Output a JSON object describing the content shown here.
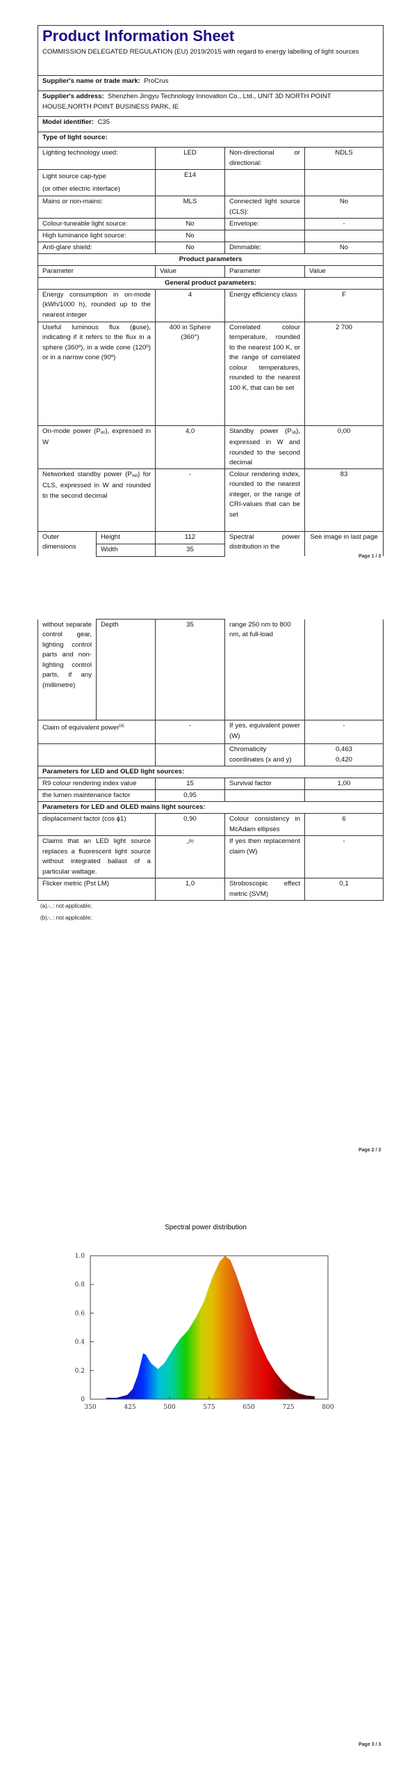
{
  "page1": {
    "title": "Product Information Sheet",
    "regulation": "COMMISSION DELEGATED REGULATION (EU) 2019/2015 with regard to energy labelling of light sources",
    "supplier_name_label": "Supplier's name or trade mark:",
    "supplier_name": "ProCrus",
    "supplier_address_label": "Supplier's address:",
    "supplier_address": "Shenzhen Jingyu Technology Innovation Co., Ltd., UNIT 3D NORTH POINT HOUSE,NORTH POINT BUSINESS PARK, IE",
    "model_label": "Model identifier:",
    "model": "C35",
    "type_heading": "Type of light source:",
    "type_rows": [
      [
        "Lighting technology used:",
        "LED",
        "Non-directional or directional:",
        "NDLS"
      ],
      [
        "Light source cap-type",
        "E14",
        "",
        ""
      ],
      [
        "Mains or non-mains:",
        "MLS",
        "Connected light source (CLS):",
        "No"
      ],
      [
        "Colour-tuneable light source:",
        "No",
        "Envelope:",
        "-"
      ],
      [
        "High luminance light source:",
        "No",
        "",
        ""
      ],
      [
        "Anti-glare shield:",
        "No",
        "Dimmable:",
        "No"
      ]
    ],
    "cap_type_note": "(or other electric interface)",
    "product_parameters": "Product parameters",
    "col_headers": [
      "Parameter",
      "Value",
      "Parameter",
      "Value"
    ],
    "general_heading": "General product parameters:",
    "energy": [
      "Energy consumption in on-mode (kWh/1000 h), rounded up to the nearest integer",
      "4",
      "Energy efficiency class",
      "F"
    ],
    "flux": [
      "Useful luminous flux (ϕuse), indicating if it refers to the flux in a sphere (360º), in a wide cone (120º) or in a narrow cone (90º)",
      "400 in Sphere (360°)",
      "Correlated colour temperature, rounded to the nearest 100 K, or the range of correlated colour temperatures, rounded to the nearest 100 K, that can be set",
      "2 700"
    ],
    "onmode": {
      "pre": "On-mode power (P",
      "sub": "on",
      "post": "), expressed in W",
      "value": "4,0",
      "p2_pre": "Standby power (P",
      "p2_sub": "sb",
      "p2_post": "), expressed in W and rounded to the second decimal",
      "value2": "0,00"
    },
    "networked": {
      "pre": "Networked standby power (P",
      "sub": "net",
      "post": ") for CLS, expressed in W and rounded to the second decimal",
      "value": "-",
      "p2": "Colour rendering index, rounded to the nearest integer, or the range of CRI-values that can be set",
      "value2": "83"
    },
    "outer": {
      "label": "Outer dimensions",
      "height_label": "Height",
      "height": "112",
      "width_label": "Width",
      "width": "35",
      "p2": "Spectral power distribution in the",
      "value2": "See image in last page"
    },
    "page_label": "Page 1 / 3"
  },
  "page2": {
    "outer_cont": "without separate control gear, lighting control parts and non-lighting control parts, if any (millimetre)",
    "depth_label": "Depth",
    "depth": "35",
    "spd_cont": "range 250 nm to 800 nm, at full-load",
    "equiv": {
      "label": "Claim of equivalent power",
      "sup": "(a)",
      "value": "-",
      "p2": "If yes, equivalent power (W)",
      "value2": "-"
    },
    "chroma": {
      "p2": "Chromaticity coordinates (x and y)",
      "x": "0,463",
      "y": "0,420"
    },
    "led_heading": "Parameters for LED and OLED light sources:",
    "r9": [
      "R9 colour rendering index value",
      "15",
      "Survival factor",
      "1,00"
    ],
    "lumen": [
      "the lumen maintenance factor",
      "0,95",
      "",
      ""
    ],
    "mains_heading": "Parameters for LED and OLED mains light sources:",
    "displacement": [
      "displacement factor (cos ϕ1)",
      "0,90",
      "Colour consistency in McAdam ellipses",
      "6"
    ],
    "claims": {
      "label": "Claims that an LED light source replaces a fluorescent light source without integrated ballast of a particular wattage.",
      "value": "-",
      "sup": "(b)",
      "p2": "If yes then replacement claim (W)",
      "value2": "-"
    },
    "flicker": [
      "Flicker metric (Pst LM)",
      "1,0",
      "Stroboscopic effect metric (SVM)",
      "0,1"
    ],
    "footnotes": [
      "(a)‚-‚ : not applicable;",
      "(b)‚-‚ : not applicable;"
    ],
    "page_label": "Page 2 / 3"
  },
  "page3": {
    "page_label": "Page 3 / 3"
  },
  "chart_data": {
    "type": "area",
    "title": "Spectral power distribution",
    "xlabel": "",
    "ylabel": "",
    "xlim": [
      350,
      800
    ],
    "ylim": [
      0,
      1.0
    ],
    "xticks": [
      "350",
      "425",
      "500",
      "575",
      "650",
      "725",
      "800"
    ],
    "yticks": [
      "0",
      "0.2",
      "0.4",
      "0.6",
      "0.8",
      "1.0"
    ],
    "x": [
      380,
      400,
      420,
      430,
      440,
      450,
      455,
      465,
      478,
      490,
      505,
      520,
      535,
      550,
      565,
      580,
      595,
      605,
      615,
      625,
      640,
      655,
      670,
      685,
      700,
      715,
      730,
      745,
      760,
      775
    ],
    "y": [
      0.01,
      0.01,
      0.03,
      0.07,
      0.17,
      0.32,
      0.31,
      0.25,
      0.21,
      0.25,
      0.34,
      0.42,
      0.48,
      0.57,
      0.68,
      0.84,
      0.96,
      1.0,
      0.97,
      0.88,
      0.72,
      0.55,
      0.4,
      0.28,
      0.19,
      0.12,
      0.07,
      0.04,
      0.025,
      0.02
    ],
    "fill": "visible-spectrum gradient",
    "grid": false
  }
}
